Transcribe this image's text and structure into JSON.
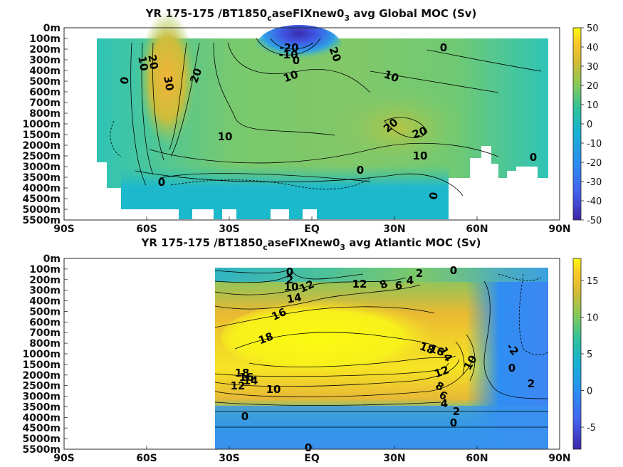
{
  "chart_data": [
    {
      "type": "heatmap",
      "title_main": "YR 175-175 /BT1850",
      "title_sub": "c",
      "title_mid": "aseFIXnew0",
      "title_sub2": "3",
      "title_end": " avg  Global MOC (Sv)",
      "x_ticks": [
        "90S",
        "60S",
        "30S",
        "EQ",
        "30N",
        "60N",
        "90N"
      ],
      "x_tick_values": [
        -90,
        -60,
        -30,
        0,
        30,
        60,
        90
      ],
      "y_ticks": [
        "0m",
        "100m",
        "200m",
        "300m",
        "400m",
        "500m",
        "600m",
        "700m",
        "800m",
        "1000m",
        "1500m",
        "2000m",
        "2500m",
        "3000m",
        "3500m",
        "4000m",
        "4500m",
        "5000m",
        "5500m"
      ],
      "colorbar_ticks": [
        "50",
        "40",
        "30",
        "20",
        "10",
        "0",
        "-10",
        "-20",
        "-30",
        "-40",
        "-50"
      ],
      "clim": [
        -50,
        50
      ],
      "colormap": "parula",
      "contour_labels": [
        "20",
        "10",
        "30",
        "0",
        "20",
        "-20",
        "-10",
        "0",
        "20",
        "10",
        "10",
        "0",
        "10",
        "20",
        "20",
        "10",
        "0",
        "0",
        "0",
        "0"
      ]
    },
    {
      "type": "heatmap",
      "title_main": "YR 175-175 /BT1850",
      "title_sub": "c",
      "title_mid": "aseFIXnew0",
      "title_sub2": "3",
      "title_end": " avg  Atlantic MOC (Sv)",
      "x_ticks": [
        "90S",
        "60S",
        "30S",
        "EQ",
        "30N",
        "60N",
        "90N"
      ],
      "x_tick_values": [
        -90,
        -60,
        -30,
        0,
        30,
        60,
        90
      ],
      "y_ticks": [
        "0m",
        "100m",
        "200m",
        "300m",
        "400m",
        "500m",
        "600m",
        "700m",
        "800m",
        "1000m",
        "1500m",
        "2000m",
        "2500m",
        "3000m",
        "3500m",
        "4000m",
        "4500m",
        "5000m",
        "5500m"
      ],
      "colorbar_ticks": [
        "15",
        "10",
        "5",
        "0",
        "-5"
      ],
      "clim": [
        -8,
        18
      ],
      "colormap": "parula",
      "contour_labels": [
        "0",
        "2",
        "10",
        "12",
        "14",
        "16",
        "18",
        "12",
        "8",
        "6",
        "4",
        "2",
        "0",
        "18",
        "16",
        "14",
        "12",
        "10",
        "8",
        "6",
        "4",
        "2",
        "0",
        "-2",
        "0",
        "2",
        "18",
        "16",
        "14",
        "12",
        "10",
        "0",
        "0"
      ]
    }
  ]
}
